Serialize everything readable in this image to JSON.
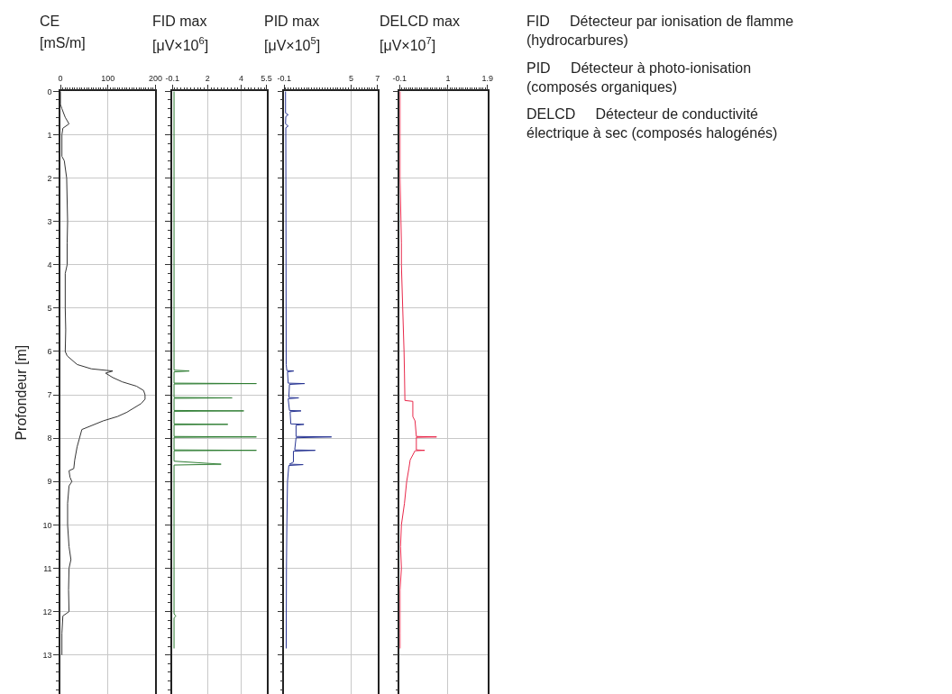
{
  "chart_data": [
    {
      "type": "line",
      "title": "CE",
      "xlabel": "[mS/m]",
      "ylabel": "Profondeur [m]",
      "xlim": [
        0,
        200
      ],
      "xticks": [
        0,
        100,
        200
      ],
      "ylim": [
        13.9,
        0
      ],
      "yticks": [
        0,
        1,
        2,
        3,
        4,
        5,
        6,
        7,
        8,
        9,
        10,
        11,
        12,
        13
      ],
      "grid": true,
      "series": [
        {
          "color": "#333333",
          "x": [
            0,
            0,
            3,
            10,
            18,
            5,
            3,
            3,
            8,
            13,
            15,
            14,
            14,
            10,
            10,
            11,
            10,
            14,
            35,
            65,
            110,
            95,
            110,
            130,
            160,
            175,
            178,
            178,
            170,
            140,
            120,
            90,
            45,
            40,
            35,
            30,
            28,
            18,
            20,
            24,
            18,
            15,
            15,
            18,
            22,
            18,
            17,
            18,
            5,
            3,
            3
          ],
          "values": [
            0,
            0.3,
            0.4,
            0.6,
            0.75,
            0.85,
            1.0,
            1.5,
            1.6,
            2.0,
            3.0,
            3.5,
            4.0,
            4.2,
            5.0,
            5.5,
            6.0,
            6.1,
            6.3,
            6.4,
            6.45,
            6.5,
            6.6,
            6.7,
            6.8,
            6.9,
            7.0,
            7.1,
            7.2,
            7.4,
            7.5,
            7.6,
            7.8,
            8.0,
            8.2,
            8.5,
            8.7,
            8.75,
            8.9,
            9.0,
            9.1,
            9.5,
            10,
            10.5,
            10.8,
            11,
            11.5,
            12.0,
            12.1,
            12.5,
            13.0
          ]
        }
      ]
    },
    {
      "type": "line",
      "title": "FID max",
      "xlabel": "[μV×10$^{6}$]",
      "xlim": [
        -0.1,
        5.5
      ],
      "xticks": [
        -0.1,
        2,
        4,
        5.5
      ],
      "ylim": [
        13.9,
        0
      ],
      "yticks": [
        0,
        1,
        2,
        3,
        4,
        5,
        6,
        7,
        8,
        9,
        10,
        11,
        12,
        13
      ],
      "grid": true,
      "tick_labels": "x",
      "series": [
        {
          "color": "#2e7d32",
          "x": [
            0,
            0,
            0.9,
            0,
            0,
            4.9,
            0,
            0,
            3.45,
            0,
            0,
            4.15,
            0,
            0,
            3.2,
            0,
            0,
            4.9,
            0,
            0,
            4.9,
            0,
            0,
            2.8,
            0,
            0,
            0.1,
            0,
            0
          ],
          "values": [
            0,
            6.43,
            6.45,
            6.47,
            6.73,
            6.74,
            6.75,
            7.06,
            7.07,
            7.08,
            7.36,
            7.37,
            7.38,
            7.67,
            7.68,
            7.69,
            7.96,
            7.97,
            7.98,
            8.27,
            8.28,
            8.29,
            8.53,
            8.6,
            8.62,
            12.05,
            12.1,
            12.15,
            12.85
          ]
        }
      ]
    },
    {
      "type": "line",
      "title": "PID max",
      "xlabel": "[μV×10$^{5}$]",
      "xlim": [
        -0.1,
        7
      ],
      "xticks": [
        -0.1,
        5,
        7
      ],
      "ylim": [
        13.9,
        0
      ],
      "yticks": [
        0,
        1,
        2,
        3,
        4,
        5,
        6,
        7,
        8,
        9,
        10,
        11,
        12,
        13
      ],
      "grid": true,
      "tick_labels": "x",
      "series": [
        {
          "color": "#283593",
          "x": [
            0,
            0,
            0.2,
            0.02,
            0,
            0.2,
            0.02,
            0.05,
            0.1,
            0.62,
            0.15,
            0.2,
            1.45,
            0.3,
            0.25,
            1.0,
            0.2,
            0.3,
            1.18,
            0.35,
            0.4,
            1.4,
            0.8,
            0.8,
            3.5,
            0.8,
            0.7,
            2.26,
            0.6,
            0.6,
            0.3,
            1.34,
            0.25,
            0.15,
            0.1,
            0.07,
            0.05
          ],
          "values": [
            0,
            0.5,
            0.54,
            0.58,
            0.75,
            0.8,
            0.84,
            6.3,
            6.44,
            6.45,
            6.47,
            6.73,
            6.74,
            6.76,
            7.06,
            7.07,
            7.09,
            7.36,
            7.37,
            7.39,
            7.67,
            7.68,
            7.7,
            7.96,
            7.97,
            7.99,
            8.27,
            8.28,
            8.3,
            8.55,
            8.6,
            8.61,
            8.63,
            9,
            10,
            11,
            12.85
          ]
        }
      ]
    },
    {
      "type": "line",
      "title": "DELCD max",
      "xlabel": "[μV×10$^{7}$]",
      "xlim": [
        -0.1,
        1.9
      ],
      "xticks": [
        -0.1,
        1,
        1.9
      ],
      "ylim": [
        13.9,
        0
      ],
      "yticks": [
        0,
        1,
        2,
        3,
        4,
        5,
        6,
        7,
        8,
        9,
        10,
        11,
        12,
        13
      ],
      "grid": true,
      "tick_labels": "x",
      "series": [
        {
          "color": "#e8284a",
          "x": [
            -0.09,
            -0.09,
            -0.09,
            -0.07,
            -0.06,
            -0.06,
            -0.03,
            0,
            0.01,
            0.02,
            0.2,
            0.2,
            0.25,
            0.28,
            0.74,
            0.28,
            0.28,
            0.47,
            0.25,
            0.14,
            0.11,
            0.06,
            0.01,
            -0.06,
            -0.08,
            -0.06,
            -0.09,
            -0.09,
            -0.09,
            -0.09
          ],
          "values": [
            0,
            1,
            2,
            3,
            3.5,
            4,
            5,
            6,
            6.5,
            7.13,
            7.15,
            7.5,
            7.6,
            7.96,
            7.97,
            7.98,
            8.27,
            8.28,
            8.29,
            8.5,
            8.7,
            9,
            9.5,
            10,
            10.5,
            11,
            11.5,
            12,
            12.5,
            12.85
          ]
        }
      ]
    },
    {
      "type": "other",
      "annotations": [
        "FID     Détecteur par ionisation de flamme (hydrocarbures)",
        "PID     Détecteur à photo-ionisation (composés organiques)",
        "DELCD     Détecteur de conductivité électrique à sec (composés halogénés)"
      ]
    }
  ]
}
